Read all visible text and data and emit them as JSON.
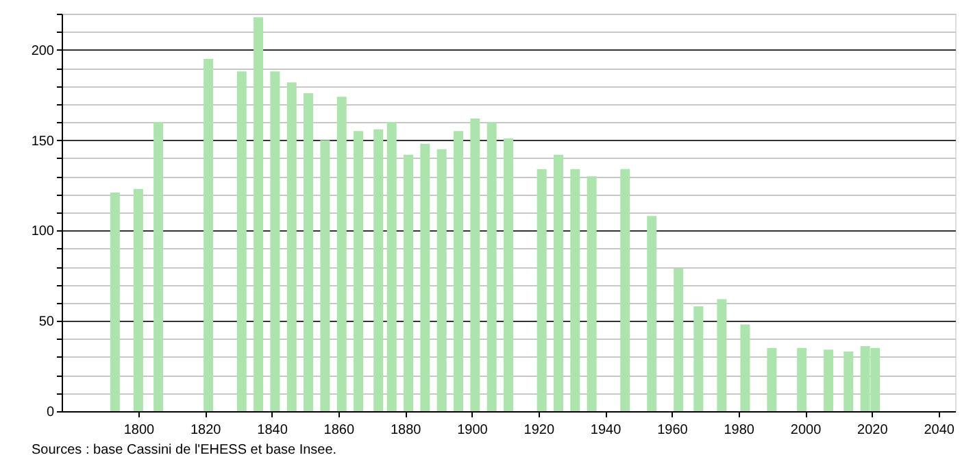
{
  "chart_data": {
    "type": "bar",
    "x": [
      1793,
      1800,
      1806,
      1821,
      1831,
      1836,
      1841,
      1846,
      1851,
      1856,
      1861,
      1866,
      1872,
      1876,
      1881,
      1886,
      1891,
      1896,
      1901,
      1906,
      1911,
      1921,
      1926,
      1931,
      1936,
      1946,
      1954,
      1962,
      1968,
      1975,
      1982,
      1990,
      1999,
      2007,
      2013,
      2018,
      2021
    ],
    "values": [
      121,
      123,
      160,
      195,
      188,
      218,
      188,
      182,
      176,
      150,
      174,
      155,
      156,
      160,
      142,
      148,
      145,
      155,
      162,
      160,
      151,
      134,
      142,
      134,
      130,
      134,
      108,
      79,
      58,
      62,
      48,
      35,
      35,
      34,
      33,
      36,
      35
    ],
    "color": "#ade3ad",
    "xlim": [
      1777,
      2045
    ],
    "xticks": [
      1800,
      1820,
      1840,
      1860,
      1880,
      1900,
      1920,
      1940,
      1960,
      1980,
      2000,
      2020,
      2040
    ],
    "ylim": [
      0,
      220
    ],
    "yticks": [
      0,
      {
        "value": 10,
        "label": null
      },
      {
        "value": 20,
        "label": null
      },
      {
        "value": 30,
        "label": null
      },
      {
        "value": 40,
        "label": null
      },
      50,
      {
        "value": 60,
        "label": null
      },
      {
        "value": 70,
        "label": null
      },
      {
        "value": 80,
        "label": null
      },
      {
        "value": 90,
        "label": null
      },
      100,
      {
        "value": 110,
        "label": null
      },
      {
        "value": 120,
        "label": null
      },
      {
        "value": 130,
        "label": null
      },
      {
        "value": 140,
        "label": null
      },
      150,
      {
        "value": 160,
        "label": null
      },
      {
        "value": 170,
        "label": null
      },
      {
        "value": 180,
        "label": null
      },
      {
        "value": 190,
        "label": null
      },
      200,
      {
        "value": 210,
        "label": null
      },
      {
        "value": 220,
        "label": null
      }
    ],
    "grid": "y",
    "annotations": [
      "Sources : base Cassini de l'EHESS et base Insee."
    ]
  }
}
